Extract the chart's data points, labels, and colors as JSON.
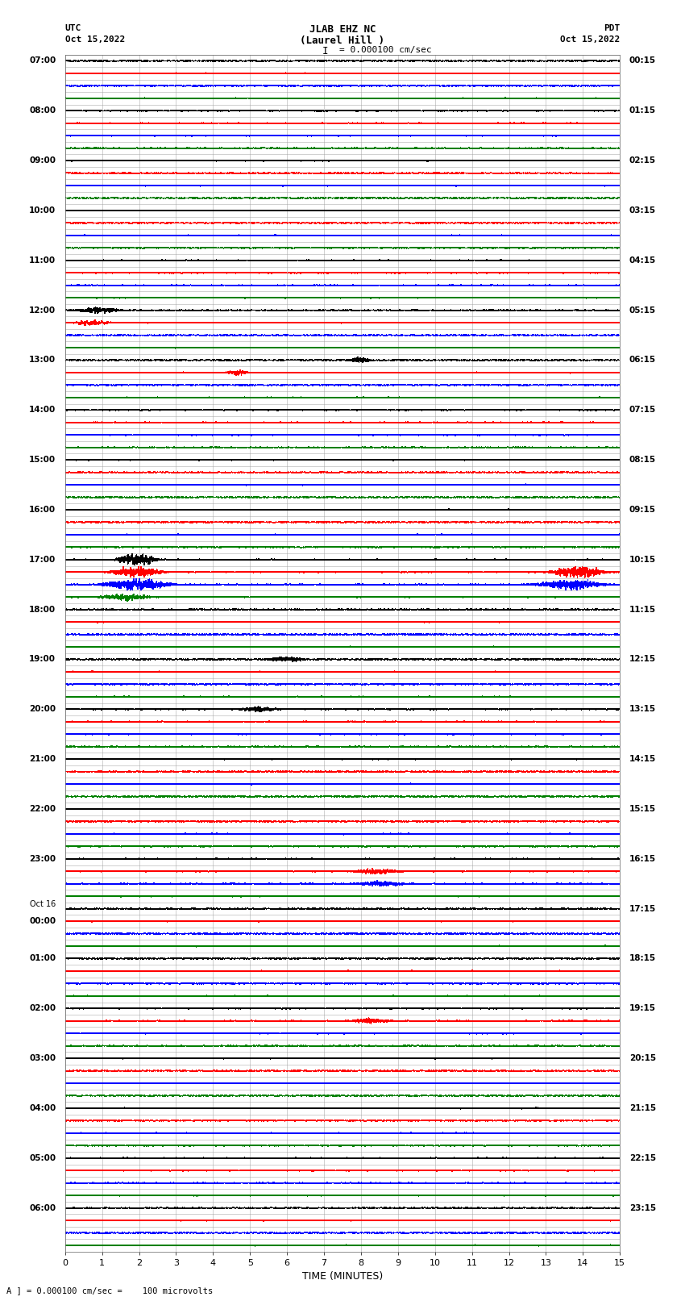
{
  "title_line1": "JLAB EHZ NC",
  "title_line2": "(Laurel Hill )",
  "scale_label": "I = 0.000100 cm/sec",
  "bottom_label": "TIME (MINUTES)",
  "bottom_note": "A ] = 0.000100 cm/sec =    100 microvolts",
  "left_times": [
    "07:00",
    "",
    "",
    "",
    "08:00",
    "",
    "",
    "",
    "09:00",
    "",
    "",
    "",
    "10:00",
    "",
    "",
    "",
    "11:00",
    "",
    "",
    "",
    "12:00",
    "",
    "",
    "",
    "13:00",
    "",
    "",
    "",
    "14:00",
    "",
    "",
    "",
    "15:00",
    "",
    "",
    "",
    "16:00",
    "",
    "",
    "",
    "17:00",
    "",
    "",
    "",
    "18:00",
    "",
    "",
    "",
    "19:00",
    "",
    "",
    "",
    "20:00",
    "",
    "",
    "",
    "21:00",
    "",
    "",
    "",
    "22:00",
    "",
    "",
    "",
    "23:00",
    "",
    "",
    "",
    "Oct 16",
    "00:00",
    "",
    "",
    "01:00",
    "",
    "",
    "",
    "02:00",
    "",
    "",
    "",
    "03:00",
    "",
    "",
    "",
    "04:00",
    "",
    "",
    "",
    "05:00",
    "",
    "",
    "",
    "06:00",
    "",
    "",
    ""
  ],
  "right_times": [
    "00:15",
    "",
    "",
    "",
    "01:15",
    "",
    "",
    "",
    "02:15",
    "",
    "",
    "",
    "03:15",
    "",
    "",
    "",
    "04:15",
    "",
    "",
    "",
    "05:15",
    "",
    "",
    "",
    "06:15",
    "",
    "",
    "",
    "07:15",
    "",
    "",
    "",
    "08:15",
    "",
    "",
    "",
    "09:15",
    "",
    "",
    "",
    "10:15",
    "",
    "",
    "",
    "11:15",
    "",
    "",
    "",
    "12:15",
    "",
    "",
    "",
    "13:15",
    "",
    "",
    "",
    "14:15",
    "",
    "",
    "",
    "15:15",
    "",
    "",
    "",
    "16:15",
    "",
    "",
    "",
    "17:15",
    "",
    "",
    "",
    "18:15",
    "",
    "",
    "",
    "19:15",
    "",
    "",
    "",
    "20:15",
    "",
    "",
    "",
    "21:15",
    "",
    "",
    "",
    "22:15",
    "",
    "",
    "",
    "23:15",
    "",
    "",
    ""
  ],
  "trace_colors": [
    "black",
    "red",
    "blue",
    "green"
  ],
  "n_minutes": 15,
  "noise_amplitude": 0.018,
  "background_color": "white",
  "trace_linewidth": 0.5,
  "grid_color": "#999999",
  "grid_linewidth": 0.4,
  "figsize": [
    8.5,
    16.13
  ],
  "dpi": 100,
  "events": [
    {
      "row": 40,
      "t0": 0.08,
      "t1": 0.18,
      "amp": 0.25
    },
    {
      "row": 41,
      "t0": 0.06,
      "t1": 0.2,
      "amp": 0.18
    },
    {
      "row": 42,
      "t0": 0.04,
      "t1": 0.22,
      "amp": 0.22
    },
    {
      "row": 43,
      "t0": 0.04,
      "t1": 0.18,
      "amp": 0.1
    },
    {
      "row": 41,
      "t0": 0.85,
      "t1": 1.0,
      "amp": 0.2
    },
    {
      "row": 42,
      "t0": 0.82,
      "t1": 1.0,
      "amp": 0.18
    },
    {
      "row": 20,
      "t0": 0.0,
      "t1": 0.12,
      "amp": 0.1
    },
    {
      "row": 21,
      "t0": 0.0,
      "t1": 0.1,
      "amp": 0.08
    },
    {
      "row": 48,
      "t0": 0.35,
      "t1": 0.45,
      "amp": 0.09
    },
    {
      "row": 52,
      "t0": 0.3,
      "t1": 0.4,
      "amp": 0.09
    },
    {
      "row": 65,
      "t0": 0.5,
      "t1": 0.62,
      "amp": 0.1
    },
    {
      "row": 66,
      "t0": 0.5,
      "t1": 0.64,
      "amp": 0.08
    },
    {
      "row": 24,
      "t0": 0.5,
      "t1": 0.56,
      "amp": 0.1
    },
    {
      "row": 25,
      "t0": 0.28,
      "t1": 0.34,
      "amp": 0.09
    },
    {
      "row": 77,
      "t0": 0.5,
      "t1": 0.6,
      "amp": 0.08
    }
  ]
}
